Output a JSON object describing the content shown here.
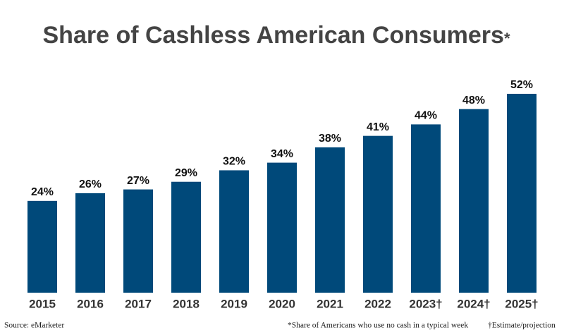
{
  "chart_data": {
    "type": "bar",
    "title": "Share of Cashless American Consumers",
    "title_note_mark": "*",
    "categories": [
      "2015",
      "2016",
      "2017",
      "2018",
      "2019",
      "2020",
      "2021",
      "2022",
      "2023†",
      "2024†",
      "2025†"
    ],
    "values": [
      24,
      26,
      27,
      29,
      32,
      34,
      38,
      41,
      44,
      48,
      52
    ],
    "value_labels": [
      "24%",
      "26%",
      "27%",
      "29%",
      "32%",
      "34%",
      "38%",
      "41%",
      "44%",
      "48%",
      "52%"
    ],
    "color": "#00497a",
    "source": "Source: eMarketer",
    "footnotes": [
      "*Share of Americans who use no cash in a typical week",
      "†Estimate/projection"
    ]
  }
}
